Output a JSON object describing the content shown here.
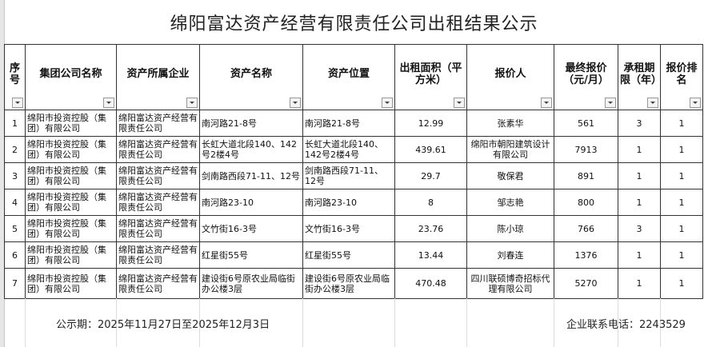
{
  "title": "绵阳富达资产经营有限责任公司出租结果公示",
  "headers": [
    "序号",
    "集团公司名称",
    "资产所属企业",
    "资产名称",
    "资产位置",
    "出租面积（平方米）",
    "报价人",
    "最终报价（元/月）",
    "承租期限（年）",
    "报价排名"
  ],
  "rows": [
    {
      "no": "1",
      "group": "绵阳市投资控股（集团）有限公司",
      "owner": "绵阳富达资产经营有限责任公司",
      "name": "南河路21-8号",
      "location": "南河路21-8号",
      "area": "12.99",
      "bidder": "张素华",
      "price": "561",
      "term": "3",
      "rank": "1"
    },
    {
      "no": "2",
      "group": "绵阳市投资控股（集团）有限公司",
      "owner": "绵阳富达资产经营有限责任公司",
      "name": "长虹大道北段140、142号2楼4号",
      "location": "长虹大道北段140、142号2楼4号",
      "area": "439.61",
      "bidder": "绵阳市朝阳建筑设计有限公司",
      "price": "7913",
      "term": "1",
      "rank": "1"
    },
    {
      "no": "3",
      "group": "绵阳市投资控股（集团）有限公司",
      "owner": "绵阳富达资产经营有限责任公司",
      "name": "剑南路西段71-11、12号",
      "location": "剑南路西段71-11、12号",
      "area": "29.7",
      "bidder": "敬保君",
      "price": "891",
      "term": "1",
      "rank": "1"
    },
    {
      "no": "4",
      "group": "绵阳市投资控股（集团）有限公司",
      "owner": "绵阳富达资产经营有限责任公司",
      "name": "南河路23-10",
      "location": "南河路23-10",
      "area": "8",
      "bidder": "邹志艳",
      "price": "800",
      "term": "1",
      "rank": "1"
    },
    {
      "no": "5",
      "group": "绵阳市投资控股（集团）有限公司",
      "owner": "绵阳富达资产经营有限责任公司",
      "name": "文竹街16-3号",
      "location": "文竹街16-3号",
      "area": "23.76",
      "bidder": "陈小琼",
      "price": "766",
      "term": "3",
      "rank": "1"
    },
    {
      "no": "6",
      "group": "绵阳市投资控股（集团）有限公司",
      "owner": "绵阳富达资产经营有限责任公司",
      "name": "红星街55号",
      "location": "红星街55号",
      "area": "13.44",
      "bidder": "刘春连",
      "price": "1376",
      "term": "1",
      "rank": "1"
    },
    {
      "no": "7",
      "group": "绵阳市投资控股（集团）有限公司",
      "owner": "绵阳富达资产经营有限责任公司",
      "name": "建设街6号原农业局临街办公楼3层",
      "location": "建设街6号原农业局临街办公楼3层",
      "area": "470.48",
      "bidder": "四川联硕博奇招标代理有限公司",
      "price": "5270",
      "term": "1",
      "rank": "1"
    }
  ],
  "footer": {
    "period": "公示期：2025年11月27日至2025年12月3日",
    "phone": "企业联系电话：2243529"
  }
}
